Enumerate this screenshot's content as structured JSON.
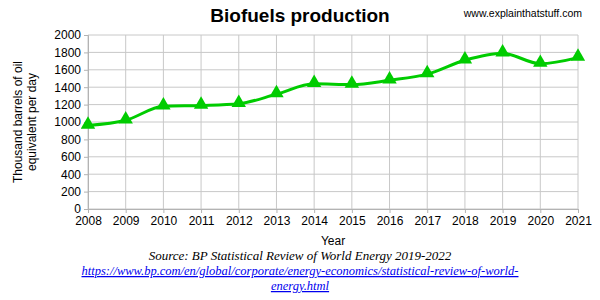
{
  "chart_data": {
    "type": "line",
    "title": "Biofuels production",
    "watermark": "www.explainthatstuff.com",
    "ylabel": [
      "Thousand barrels of oil",
      "equivalent per day"
    ],
    "xlabel": "Year",
    "source": "Source: BP Statistical Review of World Energy 2019-2022",
    "source_url": [
      "https://www.bp.com/en/global/corporate/energy-economics/statistical-review-of-world-",
      "energy.html"
    ],
    "x": [
      2008,
      2009,
      2010,
      2011,
      2012,
      2013,
      2014,
      2015,
      2016,
      2017,
      2018,
      2019,
      2020,
      2021
    ],
    "values": [
      960,
      1020,
      1180,
      1190,
      1210,
      1320,
      1440,
      1430,
      1480,
      1550,
      1710,
      1790,
      1670,
      1740
    ],
    "color": "#00cc00",
    "marker": "triangle",
    "line_style": "smooth",
    "xlim": [
      2008,
      2021
    ],
    "xticks": [
      2008,
      2009,
      2010,
      2011,
      2012,
      2013,
      2014,
      2015,
      2016,
      2017,
      2018,
      2019,
      2020,
      2021
    ],
    "ylim": [
      0,
      2000
    ],
    "yticks": [
      0,
      200,
      400,
      600,
      800,
      1000,
      1200,
      1400,
      1600,
      1800,
      2000
    ],
    "grid": true
  }
}
